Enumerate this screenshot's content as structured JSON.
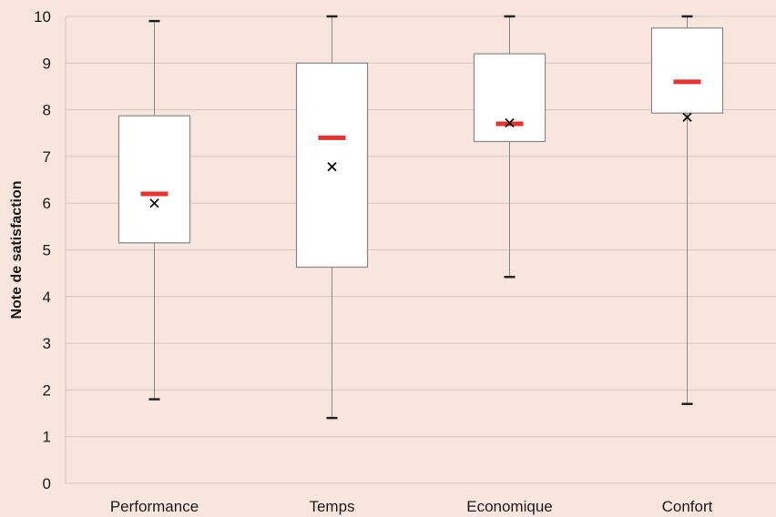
{
  "chart_data": {
    "type": "box",
    "ylabel": "Note de satisfaction",
    "xlabel": "",
    "ylim": [
      0,
      10
    ],
    "yticks": [
      0,
      1,
      2,
      3,
      4,
      5,
      6,
      7,
      8,
      9,
      10
    ],
    "grid": true,
    "categories": [
      "Performance",
      "Temps",
      "Economique",
      "Confort"
    ],
    "boxes": [
      {
        "category": "Performance",
        "min": 1.8,
        "q1": 5.15,
        "median": 6.2,
        "q3": 7.87,
        "max": 9.9,
        "mean": 6.0
      },
      {
        "category": "Temps",
        "min": 1.4,
        "q1": 4.63,
        "median": 7.4,
        "q3": 9.0,
        "max": 10.0,
        "mean": 6.78
      },
      {
        "category": "Economique",
        "min": 4.42,
        "q1": 7.32,
        "median": 7.7,
        "q3": 9.2,
        "max": 10.0,
        "mean": 7.72
      },
      {
        "category": "Confort",
        "min": 1.7,
        "q1": 7.93,
        "median": 8.6,
        "q3": 9.75,
        "max": 10.0,
        "mean": 7.84
      }
    ]
  },
  "colors": {
    "background": "#f8e6de",
    "grid": "#cfc6c2",
    "box_stroke": "#888888",
    "median": "#e8322e",
    "mean_marker": "#111111"
  }
}
